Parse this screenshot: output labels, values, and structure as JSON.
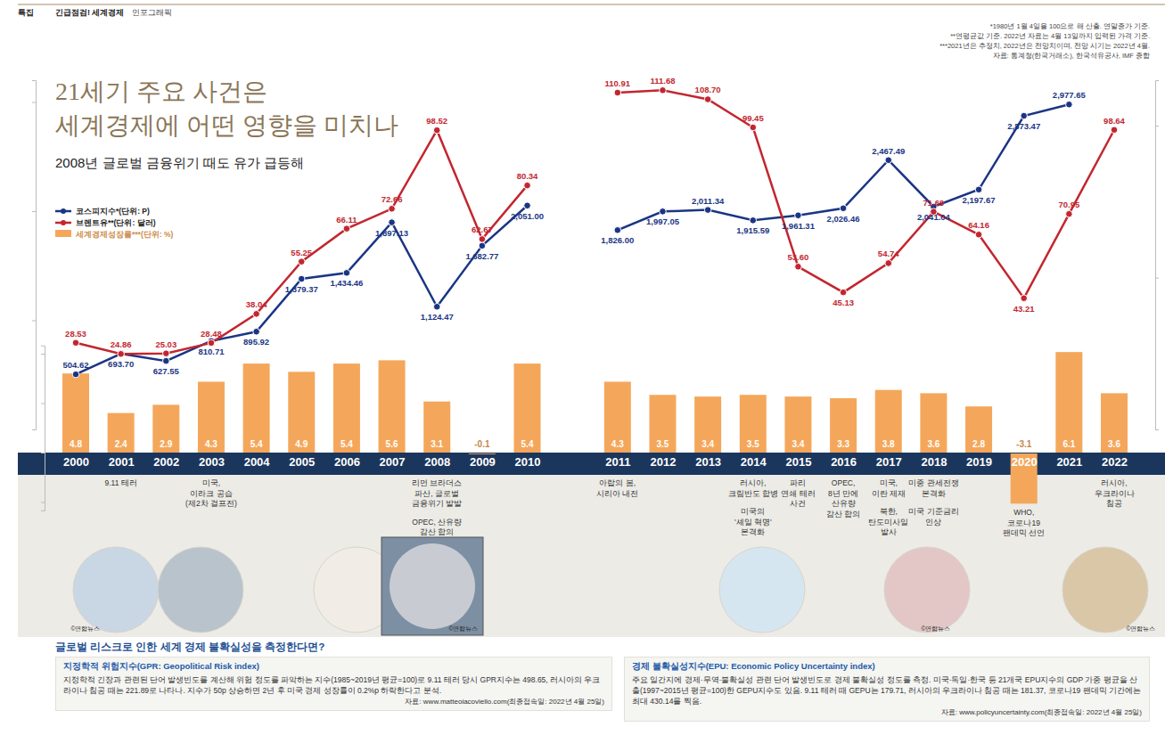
{
  "header": {
    "section": "특집",
    "title": "긴급점검! 세계경제",
    "subtitle": "인포그래픽"
  },
  "notes": [
    "*1980년 1월 4일을 100으로 해 산출. 연말종가 기준.",
    "**연평균값 기준. 2022년 자료는 4월 13일까지 입력된 가격 기준.",
    "***2021년은 추정치, 2022년은 전망치이며, 전망 시기는 2022년 4월.",
    "자료: 통계청(한국거래소), 한국석유공사, IMF 종합"
  ],
  "title": [
    "21세기 주요 사건은",
    "세계경제에 어떤 영향을 미치나"
  ],
  "subtitle": "2008년 글로벌 금융위기 때도 유가 급등해",
  "photo_credit": "©연합뉴스",
  "chart_data": [
    {
      "type": "line",
      "categories": [
        "2000",
        "2001",
        "2002",
        "2003",
        "2004",
        "2005",
        "2006",
        "2007",
        "2008",
        "2009",
        "2010",
        null,
        "2011",
        "2012",
        "2013",
        "2014",
        "2015",
        "2016",
        "2017",
        "2018",
        "2019",
        "2020",
        "2021",
        "2022"
      ],
      "series": [
        {
          "name": "코스피지수*(단위: P)",
          "color": "#1a3584",
          "marker": "circle",
          "line_style": "solid",
          "values": [
            504.62,
            693.7,
            627.55,
            810.71,
            895.92,
            1379.37,
            1434.46,
            1897.13,
            1124.47,
            1682.77,
            2051,
            null,
            1826,
            1997.05,
            2011.34,
            1915.59,
            1961.31,
            2026.46,
            2467.49,
            2041.04,
            2197.67,
            2873.47,
            2977.65,
            null
          ],
          "value_labels": [
            "504.62",
            "693.70",
            "627.55",
            "810.71",
            "895.92",
            "1,379.37",
            "1,434.46",
            "1,897.13",
            "1,124.47",
            "1,682.77",
            "2,051.00",
            null,
            "1,826.00",
            "1,997.05",
            "2,011.34",
            "1,915.59",
            "1,961.31",
            "2,026.46",
            "2,467.49",
            "2,041.04",
            "2,197.67",
            "2,873.47",
            "2,977.65",
            null
          ]
        },
        {
          "name": "브렌트유**(단위: 달러)",
          "color": "#c3262f",
          "marker": "circle",
          "line_style": "solid",
          "axis": "y2",
          "values": [
            28.53,
            24.86,
            25.03,
            28.48,
            38.04,
            55.25,
            66.11,
            72.66,
            98.52,
            62.67,
            80.34,
            null,
            110.91,
            111.68,
            108.7,
            99.45,
            53.6,
            45.13,
            54.74,
            71.69,
            64.16,
            43.21,
            70.95,
            98.64
          ],
          "value_labels": [
            "28.53",
            "24.86",
            "25.03",
            "28.48",
            "38.04",
            "55.25",
            "66.11",
            "72.66",
            "98.52",
            "62.67",
            "80.34",
            null,
            "110.91",
            "111.68",
            "108.70",
            "99.45",
            "53.60",
            "45.13",
            "54.74",
            "71.69",
            "64.16",
            "43.21",
            "70.95",
            "98.64"
          ]
        }
      ],
      "ylim": [
        0,
        3200
      ],
      "yticks": [
        0,
        1000,
        2000,
        3000
      ],
      "y2lim": [
        0,
        115
      ],
      "y2ticks": [
        0,
        50,
        100
      ],
      "tick_labels": false,
      "data_labels": true,
      "legend": "upper left"
    },
    {
      "type": "bar",
      "categories": [
        "2000",
        "2001",
        "2002",
        "2003",
        "2004",
        "2005",
        "2006",
        "2007",
        "2008",
        "2009",
        "2010",
        null,
        "2011",
        "2012",
        "2013",
        "2014",
        "2015",
        "2016",
        "2017",
        "2018",
        "2019",
        "2020",
        "2021",
        "2022"
      ],
      "series": [
        {
          "name": "세계경제성장률***(단위: %)",
          "color": "#f4a75b",
          "values": [
            4.8,
            2.4,
            2.9,
            4.3,
            5.4,
            4.9,
            5.4,
            5.6,
            3.1,
            -0.1,
            5.4,
            null,
            4.3,
            3.5,
            3.4,
            3.5,
            3.4,
            3.3,
            3.8,
            3.6,
            2.8,
            -3.1,
            6.1,
            3.6
          ]
        }
      ],
      "ylim": [
        -3.5,
        6.5
      ],
      "yticks": [
        -3,
        0,
        3,
        6
      ],
      "tick_labels": "x",
      "data_labels": true,
      "legend": "upper left",
      "annotations": [
        {
          "x": "2001",
          "groups": [
            [
              "9.11 테러"
            ]
          ]
        },
        {
          "x": "2003",
          "groups": [
            [
              "미국,",
              "이라크 공습",
              "(제2차 걸프전)"
            ]
          ]
        },
        {
          "x": "2008",
          "groups": [
            [
              "리먼 브라더스",
              "파산, 글로벌",
              "금융위기 발발"
            ],
            [
              "OPEC, 산유량",
              "감산 합의"
            ]
          ]
        },
        {
          "x": "2011",
          "groups": [
            [
              "아랍의 봄,",
              "시리아 내전"
            ]
          ]
        },
        {
          "x": "2014",
          "groups": [
            [
              "러시아,",
              "크림반도 합병"
            ],
            [
              "미국의",
              "'셰일 혁명'",
              "본격화"
            ]
          ]
        },
        {
          "x": "2015",
          "groups": [
            [
              "파리",
              "연쇄 테러",
              "사건"
            ]
          ]
        },
        {
          "x": "2016",
          "groups": [
            [
              "OPEC,",
              "8년 만에",
              "산유량",
              "감산 합의"
            ]
          ]
        },
        {
          "x": "2017",
          "groups": [
            [
              "미국,",
              "이란 제재"
            ],
            [
              "북한,",
              "탄도미사일",
              "발사"
            ]
          ]
        },
        {
          "x": "2018",
          "groups": [
            [
              "미중 관세전쟁",
              "본격화"
            ],
            [
              "미국 기준금리",
              "인상"
            ]
          ]
        },
        {
          "x": "2020",
          "groups": [
            [
              "WHO,",
              "코로나19",
              "팬데믹 선언"
            ]
          ]
        },
        {
          "x": "2022",
          "groups": [
            [
              "러시아,",
              "우크라이나",
              "침공"
            ]
          ]
        }
      ]
    }
  ],
  "info": {
    "heading": "글로벌 리스크로 인한 세계 경제 불확실성을 측정한다면?",
    "boxes": [
      {
        "title": "지정학적 위험지수(GPR: Geopolitical Risk index)",
        "body": "지정학적 긴장과 관련된 단어 발생빈도를 계산해 위험 정도를 파악하는 지수(1985~2019년 평균=100)로 9.11 테러 당시 GPR지수는 498.65, 러시아의 우크라이나 침공 때는 221.89로 나타나. 지수가 50p 상승하면 2년 후 미국 경제 성장률이 0.2%p 하락한다고 분석.",
        "source": "자료: www.matteoiacoviello.com(최종접속일: 2022년 4월 25일)"
      },
      {
        "title": "경제 불확실성지수(EPU: Economic Policy Uncertainty index)",
        "body": "주요 일간지에 경제·무역·불확실성 관련 단어 발생빈도로 경제 불확실성 정도를 측정. 미국·독일·한국 등 21개국 EPU지수의 GDP 가중 평균을 산출(1997~2015년 평균=100)한 GEPU지수도 있음. 9.11 테러 때 GEPU는 179.71, 러시아의 우크라이나 침공 때는 181.37, 코로나19 팬데믹 기간에는 최대 430.14를 찍음.",
        "source": "자료: www.policyuncertainty.com(최종접속일: 2022년 4월 25일)"
      }
    ]
  }
}
